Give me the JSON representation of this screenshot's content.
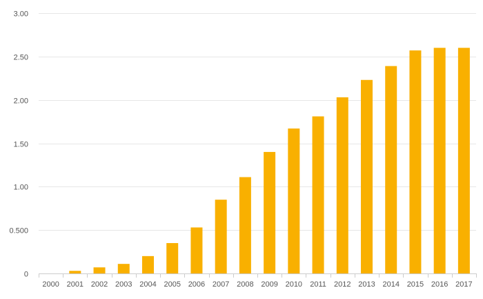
{
  "chart_data": {
    "type": "bar",
    "title": "",
    "xlabel": "",
    "ylabel": "",
    "categories": [
      "2000",
      "2001",
      "2002",
      "2003",
      "2004",
      "2005",
      "2006",
      "2007",
      "2008",
      "2009",
      "2010",
      "2011",
      "2012",
      "2013",
      "2014",
      "2015",
      "2016",
      "2017"
    ],
    "series": [
      {
        "name": "",
        "values": [
          0,
          0.03,
          0.07,
          0.11,
          0.2,
          0.35,
          0.53,
          0.85,
          1.11,
          1.4,
          1.67,
          1.81,
          2.03,
          2.23,
          2.39,
          2.57,
          2.6,
          2.6
        ]
      }
    ],
    "ylim": [
      0,
      3
    ],
    "y_ticks": [
      {
        "value": 0,
        "label": "0"
      },
      {
        "value": 0.5,
        "label": "0.500"
      },
      {
        "value": 1.0,
        "label": "1.00"
      },
      {
        "value": 1.5,
        "label": "1.50"
      },
      {
        "value": 2.0,
        "label": "2.00"
      },
      {
        "value": 2.5,
        "label": "2.50"
      },
      {
        "value": 3.0,
        "label": "3.00"
      }
    ],
    "grid": true,
    "legend": "none"
  },
  "colors": {
    "bar": "#f9b000",
    "grid": "#e6e6e6",
    "axis": "#cccccc",
    "text": "#555555"
  }
}
